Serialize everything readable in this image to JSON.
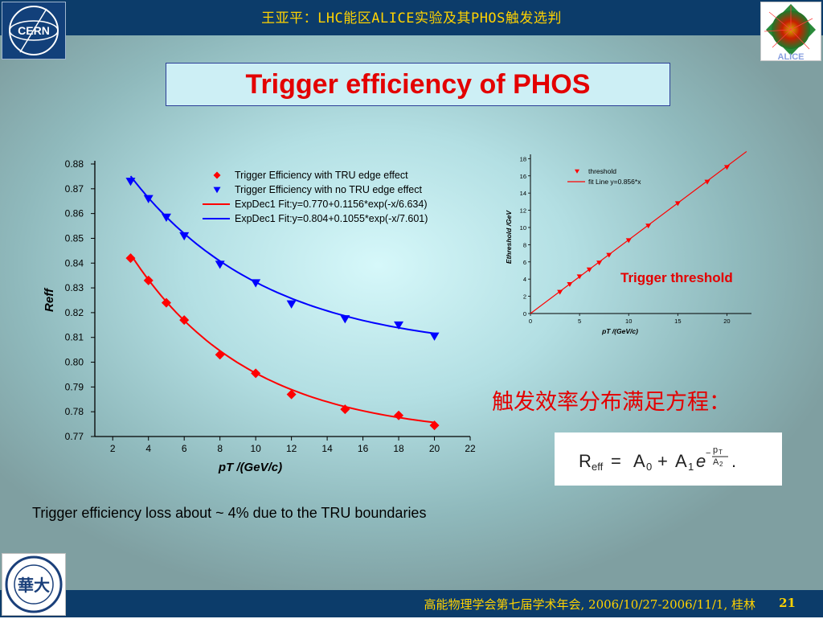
{
  "header": {
    "title": "王亚平：LHC能区ALICE实验及其PHOS触发选判"
  },
  "logo_left": {
    "text": "CERN",
    "icon": "cern-logo-icon"
  },
  "logo_right": {
    "icon": "alice-event-display-icon",
    "text": "ALICE"
  },
  "slide_title": "Trigger efficiency of PHOS",
  "chart_data": [
    {
      "type": "scatter",
      "title": "",
      "xlabel": "pT /(GeV/c)",
      "ylabel": "Reff",
      "xlim": [
        1,
        22
      ],
      "ylim": [
        0.77,
        0.88
      ],
      "x_ticks": [
        2,
        4,
        6,
        8,
        10,
        12,
        14,
        16,
        18,
        20,
        22
      ],
      "y_ticks": [
        0.77,
        0.78,
        0.79,
        0.8,
        0.81,
        0.82,
        0.83,
        0.84,
        0.85,
        0.86,
        0.87,
        0.88
      ],
      "legend_position": "top-right",
      "series": [
        {
          "name": "Trigger Efficiency with TRU edge effect",
          "marker": "diamond",
          "color": "#ff0000",
          "x": [
            3,
            4,
            5,
            6,
            8,
            10,
            12,
            15,
            18,
            20
          ],
          "y": [
            0.842,
            0.833,
            0.824,
            0.817,
            0.803,
            0.7955,
            0.787,
            0.781,
            0.7785,
            0.7745
          ]
        },
        {
          "name": "Trigger Efficiency with no TRU edge effect",
          "marker": "triangle-down",
          "color": "#0000ff",
          "x": [
            3,
            4,
            5,
            6,
            8,
            10,
            12,
            15,
            18,
            20
          ],
          "y": [
            0.873,
            0.866,
            0.8585,
            0.851,
            0.8395,
            0.832,
            0.8235,
            0.8175,
            0.815,
            0.8105
          ]
        }
      ],
      "fits": [
        {
          "name": "ExpDec1 Fit:y=0.770+0.1156*exp(-x/6.634)",
          "color": "#ff0000",
          "y0": 0.77,
          "A1": 0.1156,
          "t1": 6.634,
          "x_range": [
            3,
            20
          ]
        },
        {
          "name": "ExpDec1 Fit:y=0.804+0.1055*exp(-x/7.601)",
          "color": "#0000ff",
          "y0": 0.804,
          "A1": 0.1055,
          "t1": 7.601,
          "x_range": [
            3,
            20
          ]
        }
      ]
    },
    {
      "type": "scatter",
      "title": "",
      "xlabel": "pT /(GeV/c)",
      "ylabel": "Ethreshold /GeV",
      "xlim": [
        0,
        22.5
      ],
      "ylim": [
        0,
        18.5
      ],
      "x_ticks": [
        0,
        5,
        10,
        15,
        20
      ],
      "y_ticks": [
        0,
        2,
        4,
        6,
        8,
        10,
        12,
        14,
        16,
        18
      ],
      "legend_position": "top-right",
      "series": [
        {
          "name": "threshold",
          "marker": "triangle-down",
          "color": "#ff0000",
          "x": [
            3,
            4,
            5,
            6,
            7,
            8,
            10,
            12,
            15,
            18,
            20
          ],
          "y": [
            2.5,
            3.4,
            4.3,
            5.1,
            5.9,
            6.8,
            8.5,
            10.2,
            12.8,
            15.3,
            17.0
          ]
        }
      ],
      "fits": [
        {
          "name": "fit Line y=0.856*x",
          "color": "#ff0000",
          "slope": 0.856,
          "x_range": [
            0,
            22
          ]
        }
      ]
    }
  ],
  "trigger_threshold_label": "Trigger threshold",
  "equation_label": "触发效率分布满足方程：",
  "loss_text": "Trigger efficiency loss about ~ 4% due to the TRU boundaries",
  "footer": {
    "conference": "高能物理学会第七届学术年会, 2006/10/27-2006/11/1, 桂林",
    "page": "21"
  },
  "university_logo": {
    "icon": "huazhong-university-logo-icon",
    "text": "華大"
  }
}
